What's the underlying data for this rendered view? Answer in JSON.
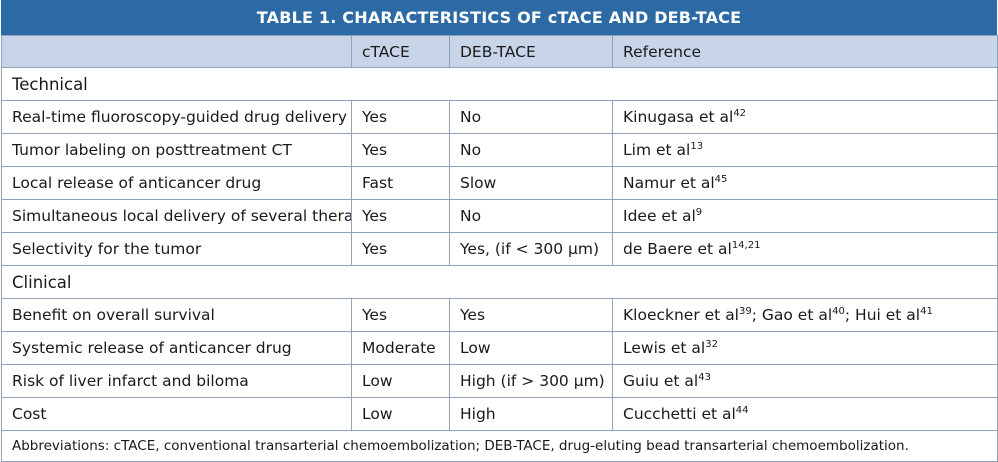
{
  "title": "TABLE 1.  CHARACTERISTICS OF cTACE AND DEB-TACE",
  "headers": [
    "",
    "cTACE",
    "DEB-TACE",
    "Reference"
  ],
  "sections": [
    {
      "name": "Technical",
      "rows": [
        {
          "feature": "Real-time fluoroscopy-guided drug delivery",
          "ctace": "Yes",
          "deb": "No",
          "refs": [
            {
              "text": "Kinugasa et al",
              "sup": "42"
            }
          ]
        },
        {
          "feature": "Tumor labeling on posttreatment CT",
          "ctace": "Yes",
          "deb": "No",
          "refs": [
            {
              "text": "Lim et al",
              "sup": "13"
            }
          ]
        },
        {
          "feature": "Local release of anticancer drug",
          "ctace": "Fast",
          "deb": "Slow",
          "refs": [
            {
              "text": "Namur et al",
              "sup": "45"
            }
          ]
        },
        {
          "feature": "Simultaneous local delivery of several therapies",
          "ctace": "Yes",
          "deb": "No",
          "refs": [
            {
              "text": "Idee et al",
              "sup": "9"
            }
          ]
        },
        {
          "feature": "Selectivity for the tumor",
          "ctace": "Yes",
          "deb": "Yes, (if < 300 µm)",
          "refs": [
            {
              "text": "de Baere et al",
              "sup": "14,21"
            }
          ]
        }
      ]
    },
    {
      "name": "Clinical",
      "rows": [
        {
          "feature": "Benefit on overall survival",
          "ctace": "Yes",
          "deb": "Yes",
          "refs": [
            {
              "text": "Kloeckner et al",
              "sup": "39",
              "after": "; "
            },
            {
              "text": "Gao et al",
              "sup": "40",
              "after": "; "
            },
            {
              "text": "Hui et al",
              "sup": "41"
            }
          ]
        },
        {
          "feature": "Systemic release of anticancer drug",
          "ctace": "Moderate",
          "deb": "Low",
          "refs": [
            {
              "text": "Lewis et al",
              "sup": "32"
            }
          ]
        },
        {
          "feature": "Risk of liver infarct and biloma",
          "ctace": "Low",
          "deb": "High (if > 300 µm)",
          "refs": [
            {
              "text": "Guiu et al",
              "sup": "43"
            }
          ]
        },
        {
          "feature": "Cost",
          "ctace": "Low",
          "deb": "High",
          "refs": [
            {
              "text": "Cucchetti et al",
              "sup": "44"
            }
          ]
        }
      ]
    }
  ],
  "footnote": "Abbreviations: cTACE, conventional transarterial chemoembolization; DEB-TACE, drug-eluting bead transarterial chemoembolization.",
  "colors": {
    "title_bg": "#2b6aa4",
    "header_bg": "#c8d5e8",
    "border": "#8fa3bd"
  }
}
